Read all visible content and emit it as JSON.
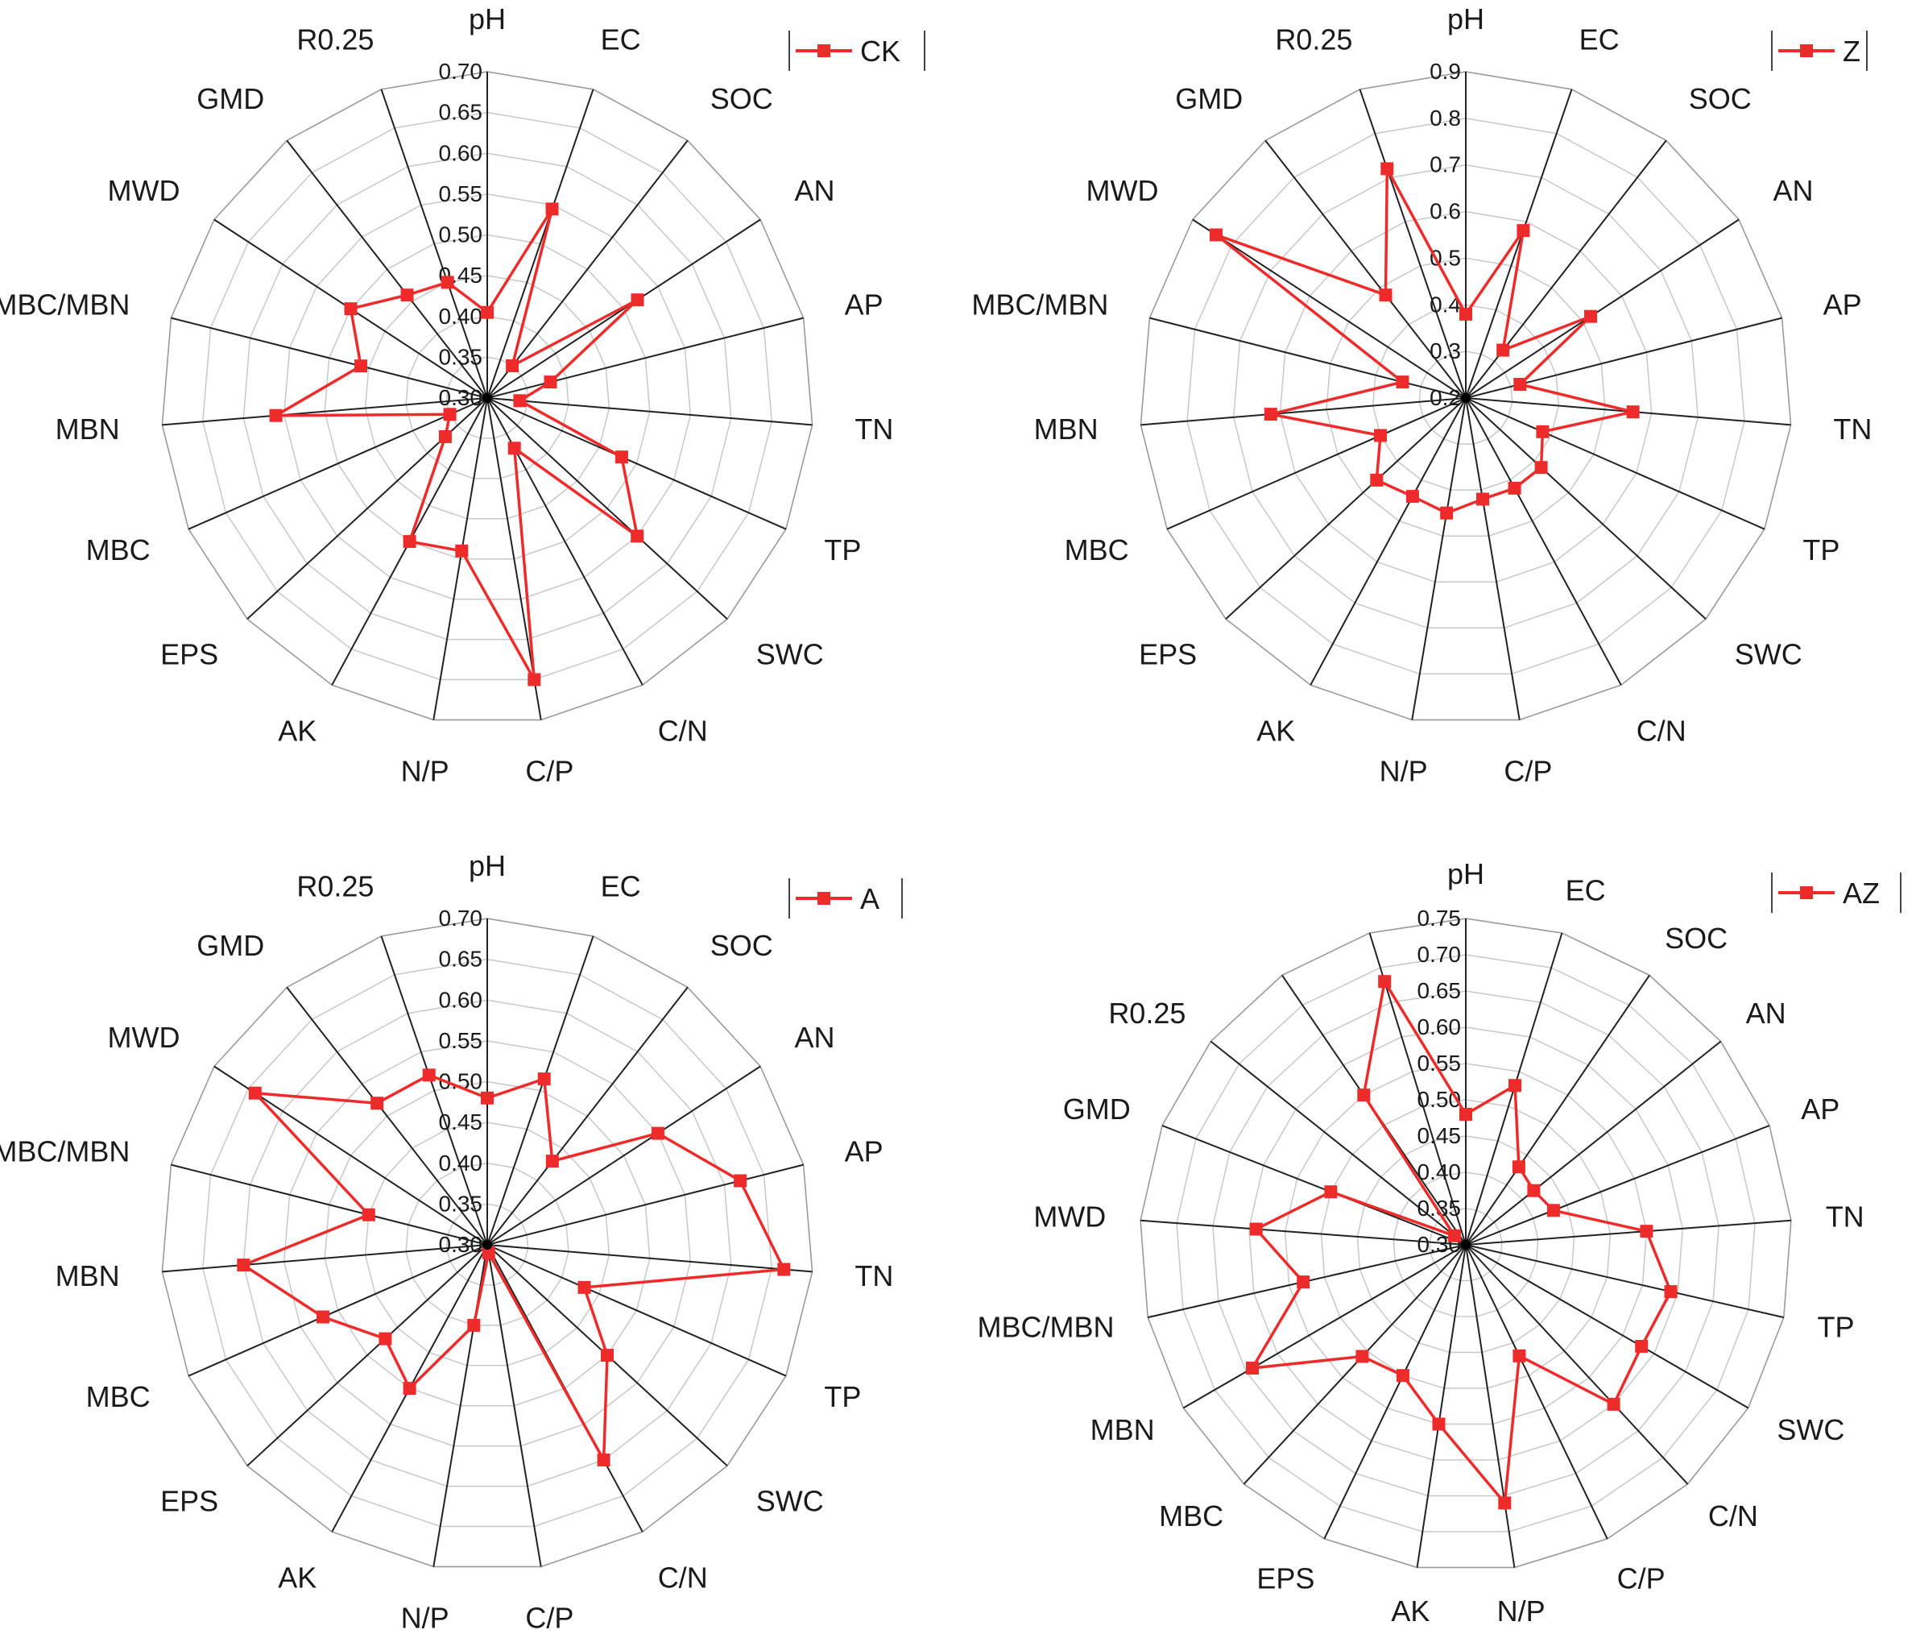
{
  "colors": {
    "series": "#ee2b2b",
    "spoke": "#222222",
    "ring": "#c8c8c8",
    "legend_border": "#444444"
  },
  "chart_data": [
    {
      "type": "radar",
      "legend": "CK",
      "legend_position": "top-right",
      "series": [
        {
          "name": "CK",
          "values": [
            0.405,
            0.545,
            0.35,
            0.52,
            0.38,
            0.34,
            0.48,
            0.55,
            0.37,
            0.65,
            0.49,
            0.5,
            0.37,
            0.35,
            0.56,
            0.46,
            0.5,
            0.46,
            0.45
          ]
        }
      ],
      "categories": [
        "pH",
        "EC",
        "SOC",
        "AN",
        "AP",
        "TN",
        "TP",
        "SWC",
        "C/N",
        "C/P",
        "N/P",
        "AK",
        "EPS",
        "MBC",
        "MBN",
        "MBC/MBN",
        "MWD",
        "GMD",
        "R0.25"
      ],
      "ticks": [
        "0.30",
        "0.35",
        "0.40",
        "0.45",
        "0.50",
        "0.55",
        "0.60",
        "0.65",
        "0.70"
      ],
      "rmin": 0.3,
      "rmax": 0.7
    },
    {
      "type": "radar",
      "legend": "Z",
      "legend_position": "top-right",
      "series": [
        {
          "name": "Z",
          "values": [
            0.38,
            0.58,
            0.33,
            0.52,
            0.32,
            0.56,
            0.38,
            0.42,
            0.42,
            0.42,
            0.45,
            0.44,
            0.46,
            0.4,
            0.62,
            0.34,
            0.84,
            0.48,
            0.72
          ]
        }
      ],
      "categories": [
        "pH",
        "EC",
        "SOC",
        "AN",
        "AP",
        "TN",
        "TP",
        "SWC",
        "C/N",
        "C/P",
        "N/P",
        "AK",
        "EPS",
        "MBC",
        "MBN",
        "MBC/MBN",
        "MWD",
        "GMD",
        "R0.25"
      ],
      "ticks": [
        "0.2",
        "0.3",
        "0.4",
        "0.5",
        "0.6",
        "0.7",
        "0.8",
        "0.9"
      ],
      "rmin": 0.2,
      "rmax": 0.9
    },
    {
      "type": "radar",
      "legend": "A",
      "legend_position": "top-right",
      "series": [
        {
          "name": "A",
          "values": [
            0.48,
            0.515,
            0.43,
            0.55,
            0.62,
            0.665,
            0.43,
            0.5,
            0.6,
            0.31,
            0.4,
            0.5,
            0.47,
            0.52,
            0.6,
            0.45,
            0.64,
            0.52,
            0.52
          ]
        }
      ],
      "categories": [
        "pH",
        "EC",
        "SOC",
        "AN",
        "AP",
        "TN",
        "TP",
        "SWC",
        "C/N",
        "C/P",
        "N/P",
        "AK",
        "EPS",
        "MBC",
        "MBN",
        "MBC/MBN",
        "MWD",
        "GMD",
        "R0.25"
      ],
      "ticks": [
        "0.30",
        "0.35",
        "0.40",
        "0.45",
        "0.50",
        "0.55",
        "0.60",
        "0.65",
        "0.70"
      ],
      "rmin": 0.3,
      "rmax": 0.7
    },
    {
      "type": "radar",
      "legend": "AZ",
      "legend_position": "top-right",
      "series": [
        {
          "name": "AZ",
          "values": [
            0.48,
            0.53,
            0.43,
            0.42,
            0.43,
            0.55,
            0.59,
            0.58,
            0.6,
            0.47,
            0.66,
            0.55,
            0.5,
            0.51,
            0.64,
            0.53,
            0.59,
            0.5,
            0.32,
            0.55,
            0.68
          ]
        }
      ],
      "categories": [
        "pH",
        "EC",
        "SOC",
        "AN",
        "AP",
        "TN",
        "TP",
        "SWC",
        "C/N",
        "C/P",
        "N/P",
        "AK",
        "EPS",
        "MBC",
        "MBN",
        "MBC/MBN",
        "MWD",
        "GMD",
        "R0.25",
        "",
        ""
      ],
      "ticks": [
        "0.30",
        "0.35",
        "0.40",
        "0.45",
        "0.50",
        "0.55",
        "0.60",
        "0.65",
        "0.70",
        "0.75"
      ],
      "rmin": 0.3,
      "rmax": 0.75
    }
  ]
}
